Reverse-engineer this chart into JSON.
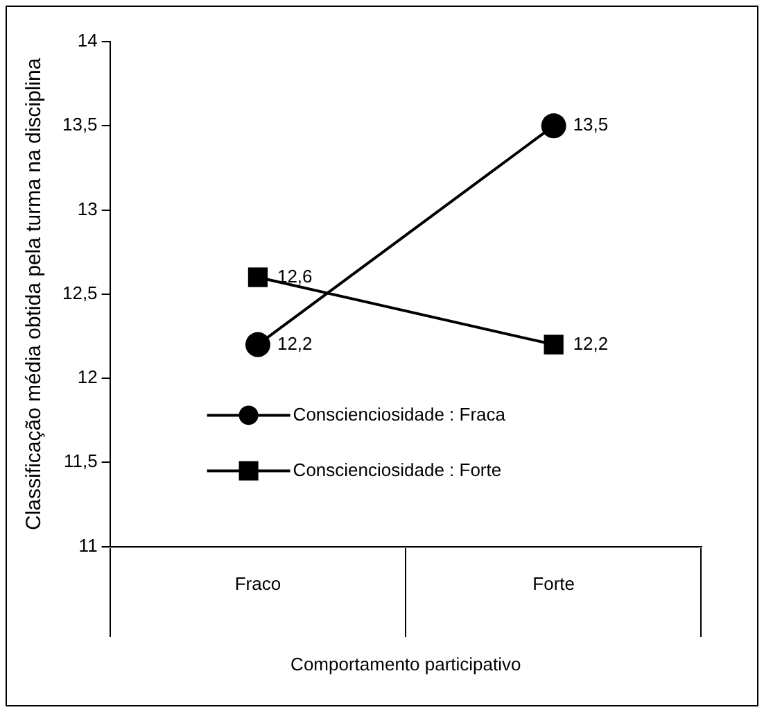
{
  "chart_data": {
    "type": "line",
    "xlabel": "Comportamento participativo",
    "ylabel": "Classificação média obtida pela turma na disciplina",
    "categories": [
      "Fraco",
      "Forte"
    ],
    "series": [
      {
        "name": "Conscienciosidade : Fraca",
        "color": "#000000",
        "marker": "circle",
        "values": [
          12.2,
          13.5
        ],
        "value_labels": [
          "12,2",
          "13,5"
        ]
      },
      {
        "name": "Conscienciosidade : Forte",
        "color": "#000000",
        "marker": "square",
        "values": [
          12.6,
          12.2
        ],
        "value_labels": [
          "12,6",
          "12,2"
        ]
      }
    ],
    "ylim": [
      11,
      14
    ],
    "yticks": [
      11,
      {
        "value": 11.5,
        "label": "11,5"
      },
      12,
      {
        "value": 12.5,
        "label": "12,5"
      },
      13,
      {
        "value": 13.5,
        "label": "13,5"
      },
      14
    ],
    "grid": false,
    "legend": "bottom left",
    "line_style": "solid"
  }
}
